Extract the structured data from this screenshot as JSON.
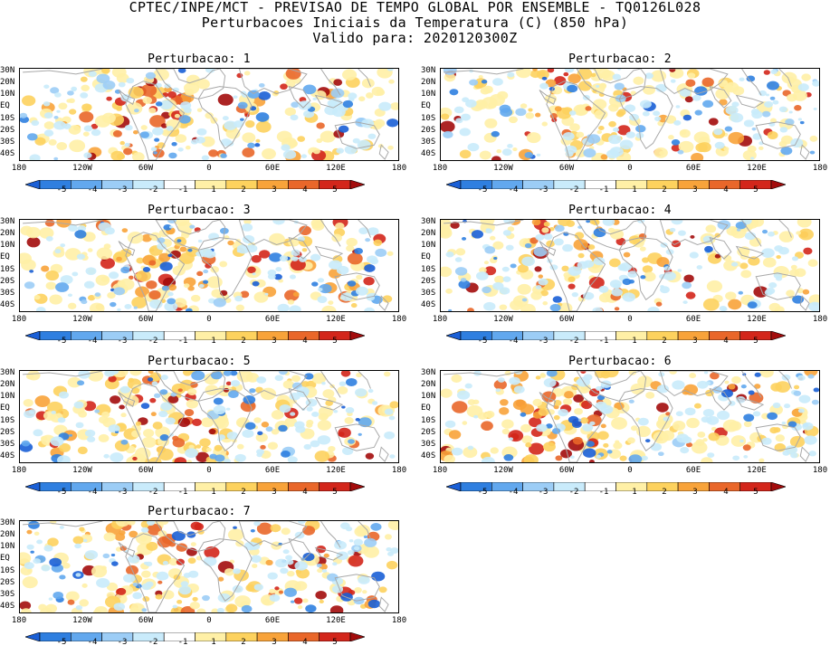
{
  "header": {
    "line1": "CPTEC/INPE/MCT - PREVISAO DE TEMPO GLOBAL POR ENSEMBLE - TQ0126L028",
    "line2": "Perturbacoes Iniciais da Temperatura (C) (850 hPa)",
    "line3": "Valido para: 2020120300Z"
  },
  "panels": [
    {
      "title": "Perturbacao: 1"
    },
    {
      "title": "Perturbacao: 2"
    },
    {
      "title": "Perturbacao: 3"
    },
    {
      "title": "Perturbacao: 4"
    },
    {
      "title": "Perturbacao: 5"
    },
    {
      "title": "Perturbacao: 6"
    },
    {
      "title": "Perturbacao: 7"
    }
  ],
  "axes": {
    "lat_labels": [
      "30N",
      "20N",
      "10N",
      "EQ",
      "10S",
      "20S",
      "30S",
      "40S"
    ],
    "lon_labels": [
      "180",
      "120W",
      "60W",
      "0",
      "60E",
      "120E",
      "180"
    ]
  },
  "colorbar": {
    "labels": [
      "-5",
      "-4",
      "-3",
      "-2",
      "-1",
      "1",
      "2",
      "3",
      "4",
      "5"
    ],
    "colors": [
      "#1a5fd6",
      "#2f7fe0",
      "#62a8ee",
      "#9ccdf6",
      "#c9ebfb",
      "#ffffff",
      "#fff0a6",
      "#fdd25e",
      "#f8a33a",
      "#e9672a",
      "#d3261b",
      "#a30c0c"
    ]
  }
}
